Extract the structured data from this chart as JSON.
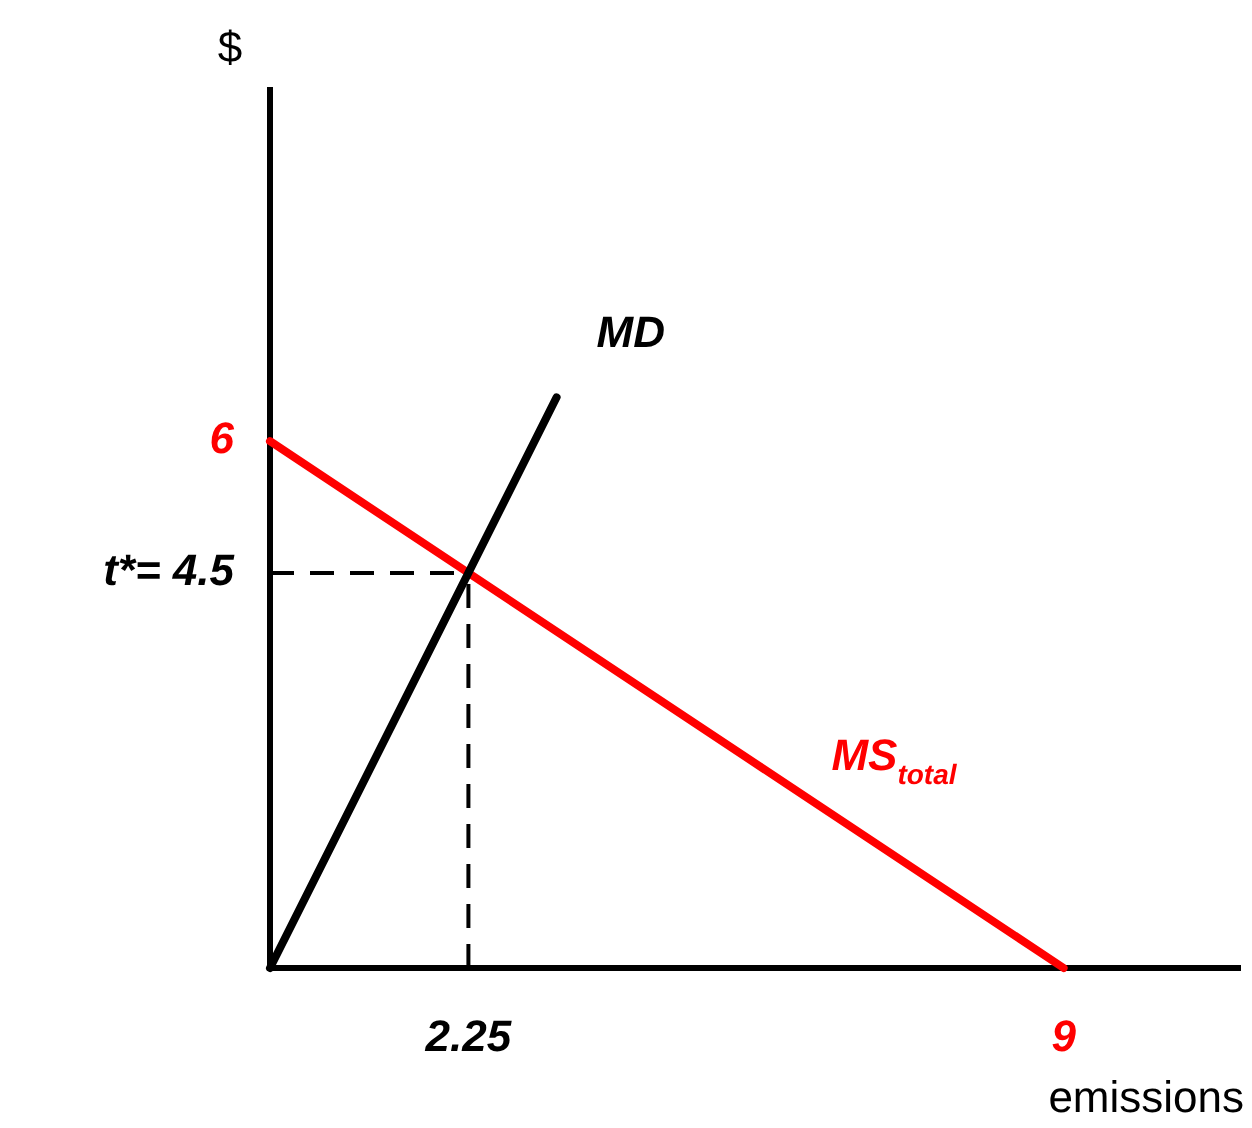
{
  "chart_data": {
    "type": "line",
    "xlabel": "emissions",
    "ylabel": "$",
    "series": [
      {
        "name": "MD",
        "color": "#000000",
        "x": [
          0,
          2.25,
          3.25
        ],
        "values": [
          0,
          4.5,
          6.5
        ]
      },
      {
        "name": "MS$_{total}$",
        "color": "#ff0000",
        "x": [
          0,
          9
        ],
        "values": [
          6,
          0
        ]
      }
    ],
    "xlim": [
      0,
      11
    ],
    "ylim": [
      0,
      10
    ],
    "xticks": [
      2.25,
      9
    ],
    "yticks": [
      {
        "value": 4.5,
        "label": "t*= 4.5"
      },
      6
    ],
    "ref_lines": [
      {
        "axis": "y",
        "value": 4.5,
        "line_style": "dashed",
        "color": "#000000"
      },
      {
        "axis": "x",
        "value": 2.25,
        "line_style": "dashed",
        "color": "#000000"
      }
    ],
    "grid": false,
    "legend": false,
    "marker": "none",
    "line_style": "solid"
  }
}
